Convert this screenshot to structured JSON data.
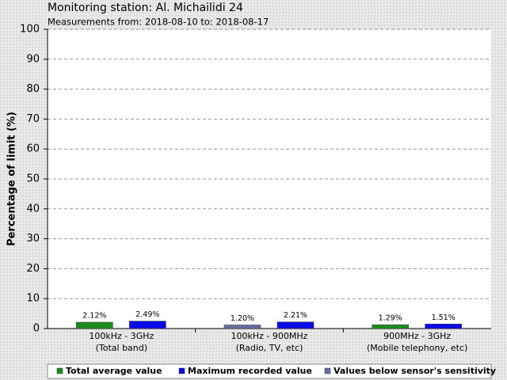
{
  "chart_data": {
    "type": "bar",
    "title": "Monitoring station: Al. Michailidi 24",
    "subtitle": "Measurements from: 2018-08-10 to: 2018-08-17",
    "y_label": "Percentage of limit (%)",
    "categories": [
      [
        "100kHz - 3GHz",
        "(Total band)"
      ],
      [
        "100kHz - 900MHz",
        "(Radio, TV, etc)"
      ],
      [
        "900MHz - 3GHz",
        "(Mobile telephony, etc)"
      ]
    ],
    "series": [
      {
        "name": "Total average value",
        "color": "#1c8c1c",
        "values": [
          2.12,
          null,
          1.29
        ],
        "value_labels": [
          "2.12%",
          null,
          "1.29%"
        ]
      },
      {
        "name": "Maximum recorded value",
        "color": "#0a0ae6",
        "values": [
          2.49,
          2.21,
          1.51
        ],
        "value_labels": [
          "2.49%",
          "2.21%",
          "1.51%"
        ]
      },
      {
        "name": "Values below sensor's sensitivity",
        "color": "#6670a0",
        "values": [
          null,
          1.2,
          null
        ],
        "value_labels": [
          null,
          "1.20%",
          null
        ]
      }
    ],
    "ylim": [
      0,
      100
    ],
    "yticks": [
      0,
      10,
      20,
      30,
      40,
      50,
      60,
      70,
      80,
      90,
      100
    ],
    "grid": true
  }
}
